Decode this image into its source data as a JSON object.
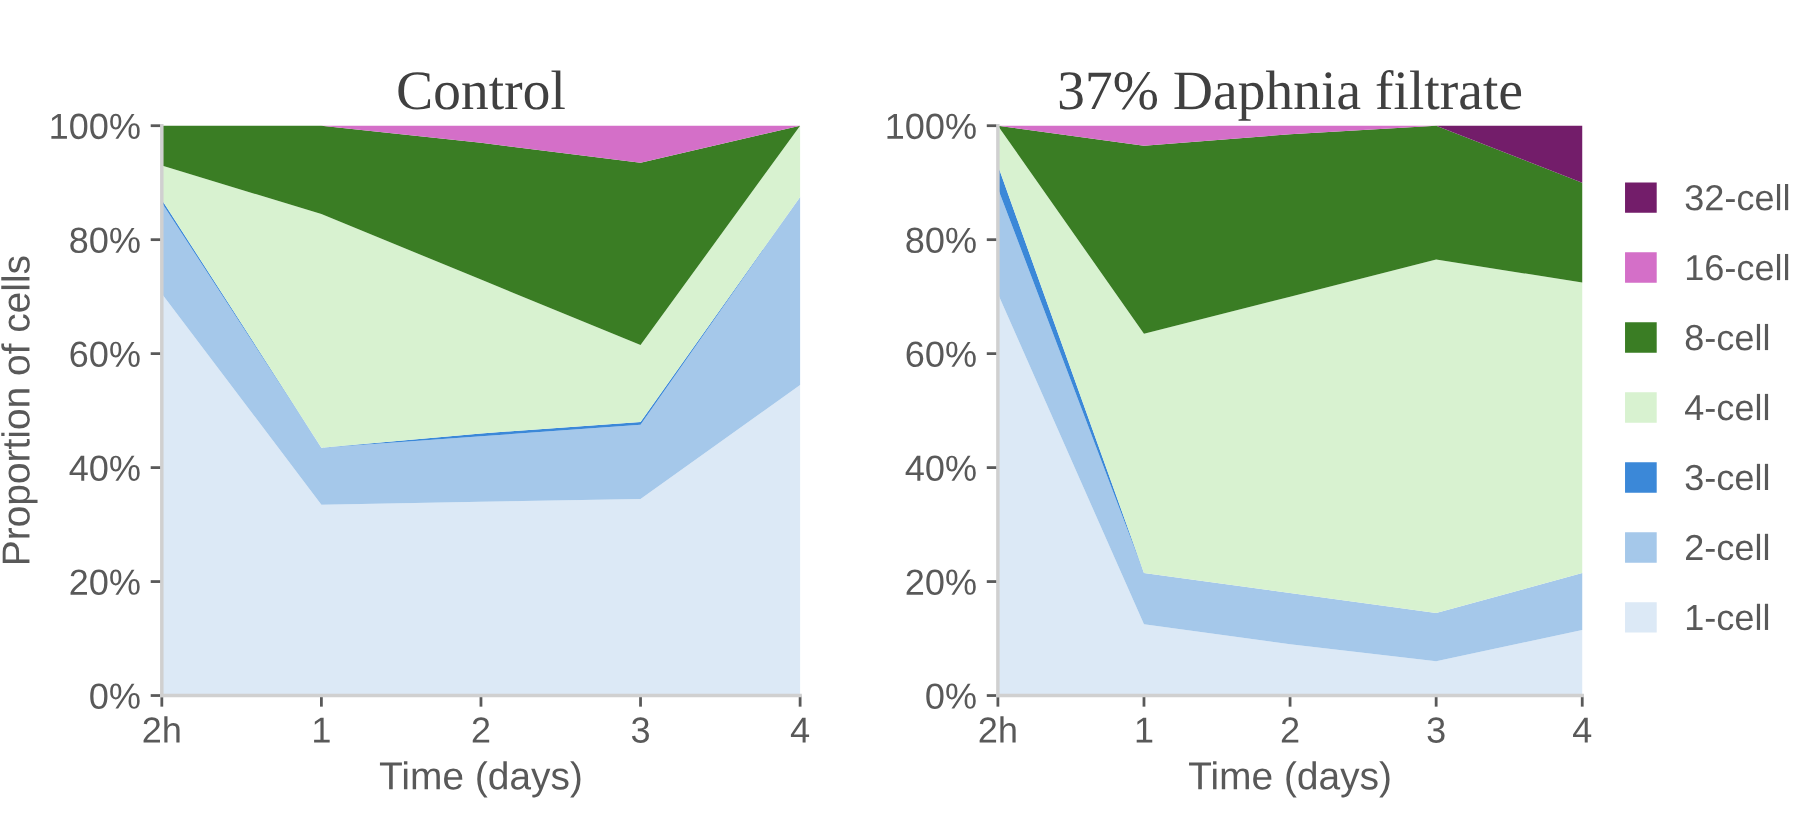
{
  "chart_data": [
    {
      "type": "area",
      "stacked": true,
      "title": "Control",
      "xlabel": "Time (days)",
      "ylabel": "Proportion of cells",
      "categories": [
        "2h",
        "1",
        "2",
        "3",
        "4"
      ],
      "ylim": [
        0,
        100
      ],
      "yticks": [
        {
          "value": 0,
          "label": "0%"
        },
        {
          "value": 20,
          "label": "20%"
        },
        {
          "value": 40,
          "label": "40%"
        },
        {
          "value": 60,
          "label": "60%"
        },
        {
          "value": 80,
          "label": "80%"
        },
        {
          "value": 100,
          "label": "100%"
        }
      ],
      "grid": false,
      "series": [
        {
          "color": "#dce9f6",
          "values": [
            70.5,
            33.5,
            34,
            34.5,
            54.5
          ]
        },
        {
          "color": "#a5c8ea",
          "values": [
            16,
            10,
            11.5,
            13,
            33
          ]
        },
        {
          "color": "#3b88d8",
          "values": [
            0.5,
            0,
            0.5,
            0.5,
            0
          ]
        },
        {
          "color": "#d8f2d0",
          "values": [
            6,
            41,
            27,
            13.5,
            12.5
          ]
        },
        {
          "color": "#3a7d24",
          "values": [
            7,
            15.5,
            24,
            32,
            0
          ]
        },
        {
          "color": "#d46fc8",
          "values": [
            0,
            0,
            3,
            6.5,
            0
          ]
        }
      ]
    },
    {
      "type": "area",
      "stacked": true,
      "title": "37% Daphnia filtrate",
      "xlabel": "Time (days)",
      "categories": [
        "2h",
        "1",
        "2",
        "3",
        "4"
      ],
      "ylim": [
        0,
        100
      ],
      "yticks": [
        {
          "value": 0,
          "label": "0%"
        },
        {
          "value": 20,
          "label": "20%"
        },
        {
          "value": 40,
          "label": "40%"
        },
        {
          "value": 60,
          "label": "60%"
        },
        {
          "value": 80,
          "label": "80%"
        },
        {
          "value": 100,
          "label": "100%"
        }
      ],
      "grid": false,
      "legend": "right",
      "series": [
        {
          "name": "1-cell",
          "color": "#dce9f6",
          "values": [
            70.5,
            12.5,
            9,
            6,
            11.5
          ]
        },
        {
          "name": "2-cell",
          "color": "#a5c8ea",
          "values": [
            18.5,
            9,
            9,
            8.5,
            10
          ]
        },
        {
          "name": "3-cell",
          "color": "#3b88d8",
          "values": [
            4,
            0,
            0,
            0,
            0
          ]
        },
        {
          "name": "4-cell",
          "color": "#d8f2d0",
          "values": [
            7,
            42,
            52,
            62,
            51
          ]
        },
        {
          "name": "8-cell",
          "color": "#3a7d24",
          "values": [
            0,
            33,
            28.5,
            23.5,
            17.5
          ]
        },
        {
          "name": "16-cell",
          "color": "#d46fc8",
          "values": [
            0,
            3.5,
            1.5,
            0,
            0
          ]
        },
        {
          "name": "32-cell",
          "color": "#731d6a",
          "values": [
            null,
            null,
            null,
            0,
            10
          ]
        }
      ]
    }
  ]
}
